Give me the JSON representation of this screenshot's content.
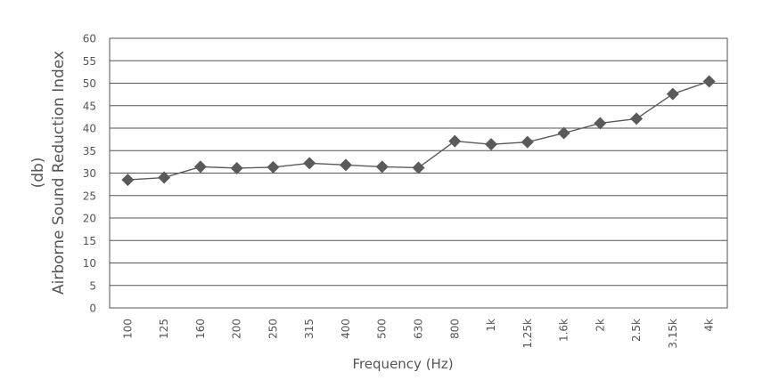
{
  "chart_data": {
    "type": "line",
    "xlabel": "Frequency (Hz)",
    "ylabel_lines": [
      "(db)",
      "Airborne Sound Reduction Index"
    ],
    "ylim": [
      0,
      60
    ],
    "ytick_step": 5,
    "yticks": [
      "0",
      "5",
      "10",
      "15",
      "20",
      "25",
      "30",
      "35",
      "40",
      "45",
      "50",
      "55",
      "60"
    ],
    "grid": true,
    "marker": "diamond",
    "categories": [
      "100",
      "125",
      "160",
      "200",
      "250",
      "315",
      "400",
      "500",
      "630",
      "800",
      "1k",
      "1.25k",
      "1.6k",
      "2k",
      "2.5k",
      "3.15k",
      "4k"
    ],
    "series": [
      {
        "values": [
          28.5,
          29,
          31.4,
          31.1,
          31.3,
          32.2,
          31.8,
          31.4,
          31.2,
          37.1,
          36.4,
          36.9,
          38.9,
          41.1,
          42.1,
          47.6,
          50.4
        ]
      }
    ]
  },
  "colors": {
    "line": "#5a5a5a",
    "grid": "#555555",
    "text": "#555555"
  }
}
